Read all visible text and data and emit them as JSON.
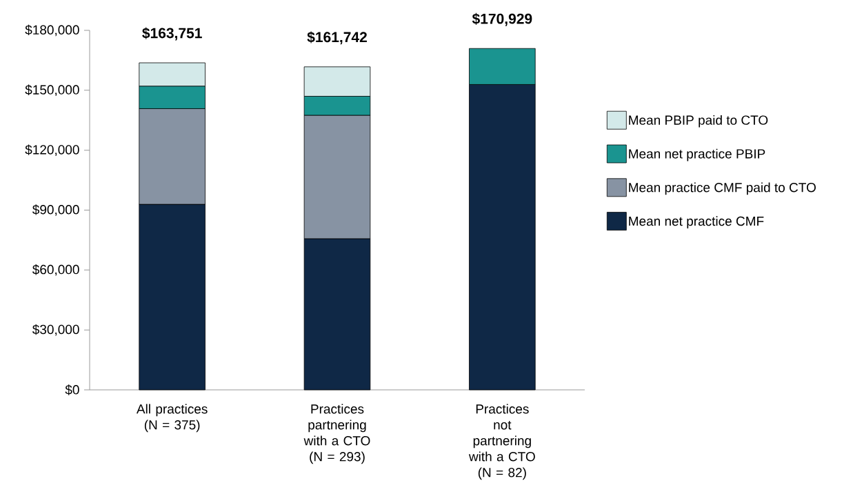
{
  "chart_data": {
    "type": "bar",
    "stacked": true,
    "categories": [
      "All practices (N = 375)",
      "Practices partnering with a CTO (N = 293)",
      "Practices not partnering with a CTO (N = 82)"
    ],
    "series": [
      {
        "name": "Mean net practice CMF",
        "color": "#0f2846",
        "values": [
          92900,
          75700,
          152900
        ]
      },
      {
        "name": "Mean practice CMF paid to CTO",
        "color": "#8793a3",
        "values": [
          47900,
          61800,
          null
        ]
      },
      {
        "name": "Mean net practice PBIP",
        "color": "#1a9490",
        "values": [
          11300,
          9500,
          18029
        ]
      },
      {
        "name": "Mean PBIP paid to CTO",
        "color": "#d3e9e9",
        "values": [
          11651,
          14742,
          null
        ]
      }
    ],
    "totals": [
      "$163,751",
      "$161,742",
      "$170,929"
    ],
    "ylim": [
      0,
      180000
    ],
    "yticks": [
      {
        "value": 0,
        "label": "$0"
      },
      {
        "value": 30000,
        "label": "$30,000"
      },
      {
        "value": 60000,
        "label": "$60,000"
      },
      {
        "value": 90000,
        "label": "$90,000"
      },
      {
        "value": 120000,
        "label": "$120,000"
      },
      {
        "value": 150000,
        "label": "$150,000"
      },
      {
        "value": 180000,
        "label": "$180,000"
      }
    ],
    "grid": false,
    "legend": "right"
  }
}
